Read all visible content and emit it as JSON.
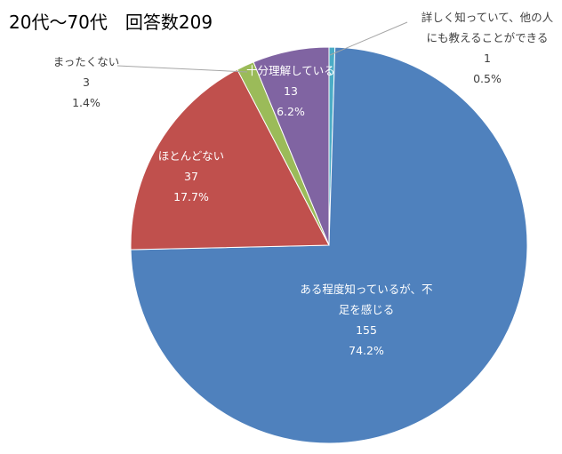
{
  "chart_data": {
    "type": "pie",
    "title": "20代～70代　回答数209",
    "slices": [
      {
        "label_lines": [
          "詳しく知っていて、他の人",
          "にも教えることができる"
        ],
        "count": "1",
        "percent": "0.5%",
        "value": 1,
        "color": "#4BACC6"
      },
      {
        "label_lines": [
          "ある程度知っているが、不",
          "足を感じる"
        ],
        "count": "155",
        "percent": "74.2%",
        "value": 155,
        "color": "#4F81BD"
      },
      {
        "label_lines": [
          "ほとんどない"
        ],
        "count": "37",
        "percent": "17.7%",
        "value": 37,
        "color": "#C0504D"
      },
      {
        "label_lines": [
          "まったくない"
        ],
        "count": "3",
        "percent": "1.4%",
        "value": 3,
        "color": "#9BBB59"
      },
      {
        "label_lines": [
          "十分理解している"
        ],
        "count": "13",
        "percent": "6.2%",
        "value": 13,
        "color": "#8064A2"
      }
    ]
  }
}
